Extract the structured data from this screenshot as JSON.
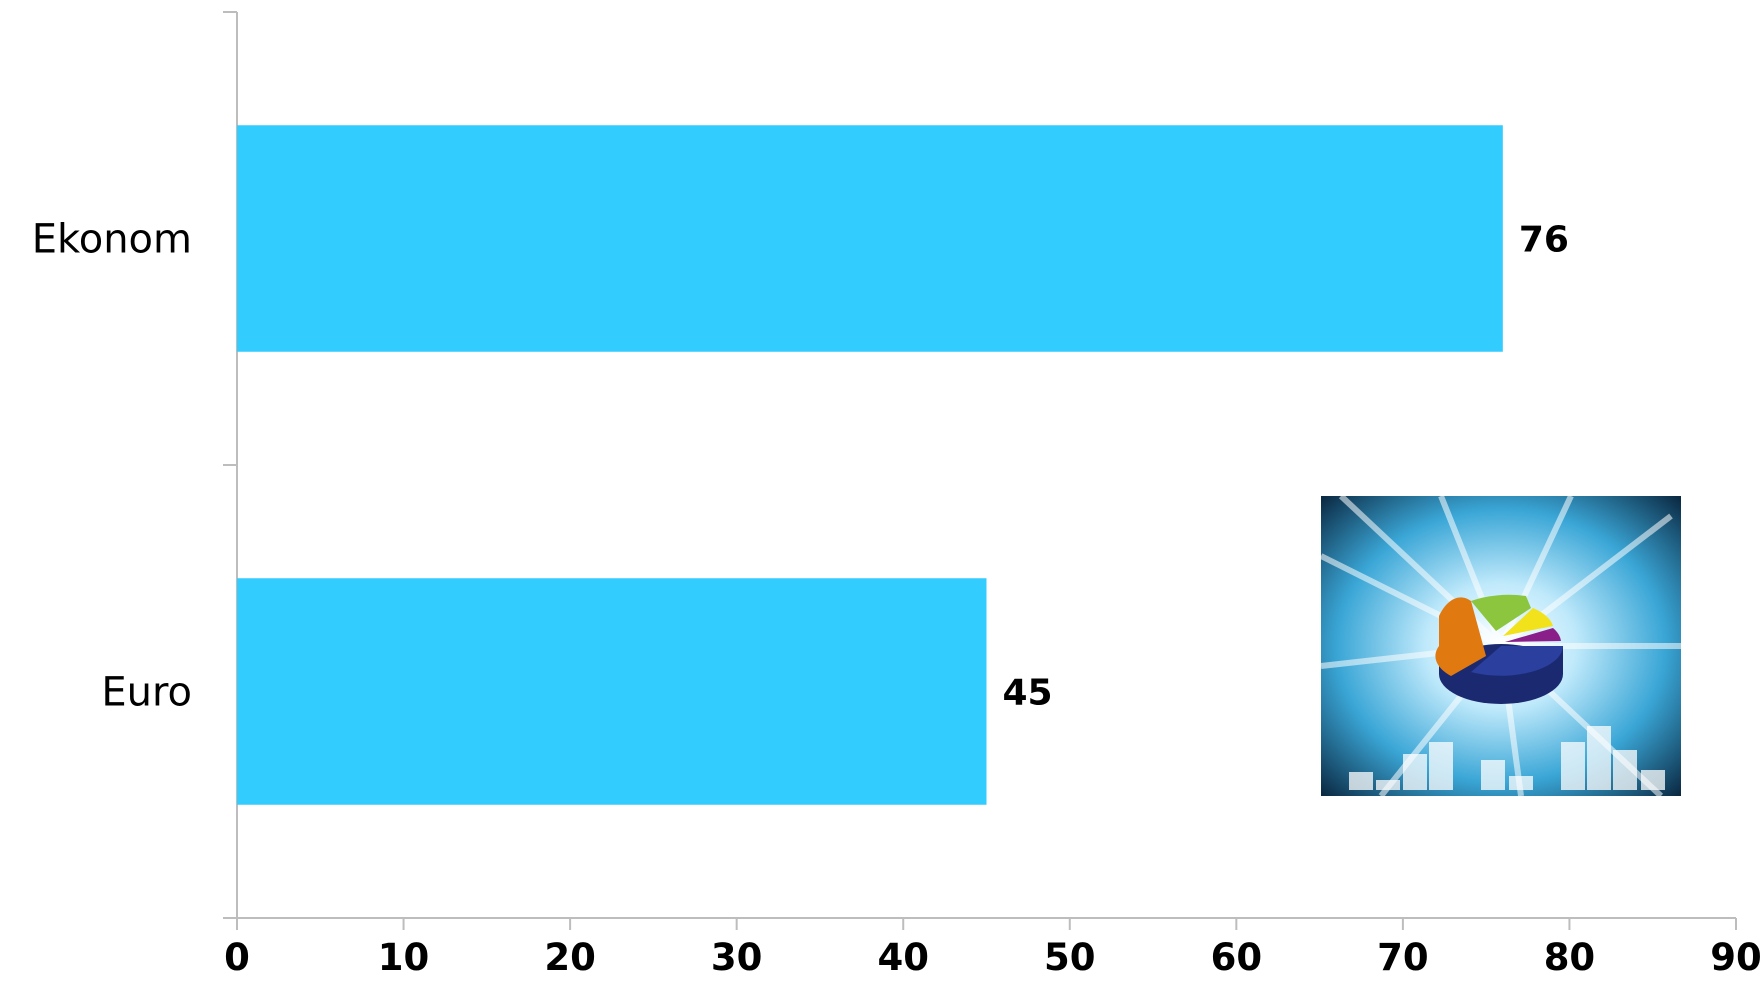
{
  "chart_data": {
    "type": "bar",
    "orientation": "horizontal",
    "categories": [
      "Ekonom",
      "Euro"
    ],
    "values": [
      76,
      45
    ],
    "data_labels": [
      "76",
      "45"
    ],
    "xlim": [
      0,
      90
    ],
    "x_ticks": [
      "0",
      "10",
      "20",
      "30",
      "40",
      "50",
      "60",
      "70",
      "80",
      "90"
    ],
    "title": "",
    "xlabel": "",
    "ylabel": "",
    "bar_color": "#33ccff",
    "grid": false,
    "legend": "none"
  },
  "decoration": {
    "icon": "pie-chart-burst-icon",
    "colors": {
      "background_dark": "#0b2a44",
      "background_light": "#7fd3f5",
      "pie_blue": "#2a3f9e",
      "pie_orange": "#e07a10",
      "pie_green": "#8cc63f",
      "pie_yellow": "#f2e21b",
      "pie_purple": "#8a1f8a"
    }
  }
}
